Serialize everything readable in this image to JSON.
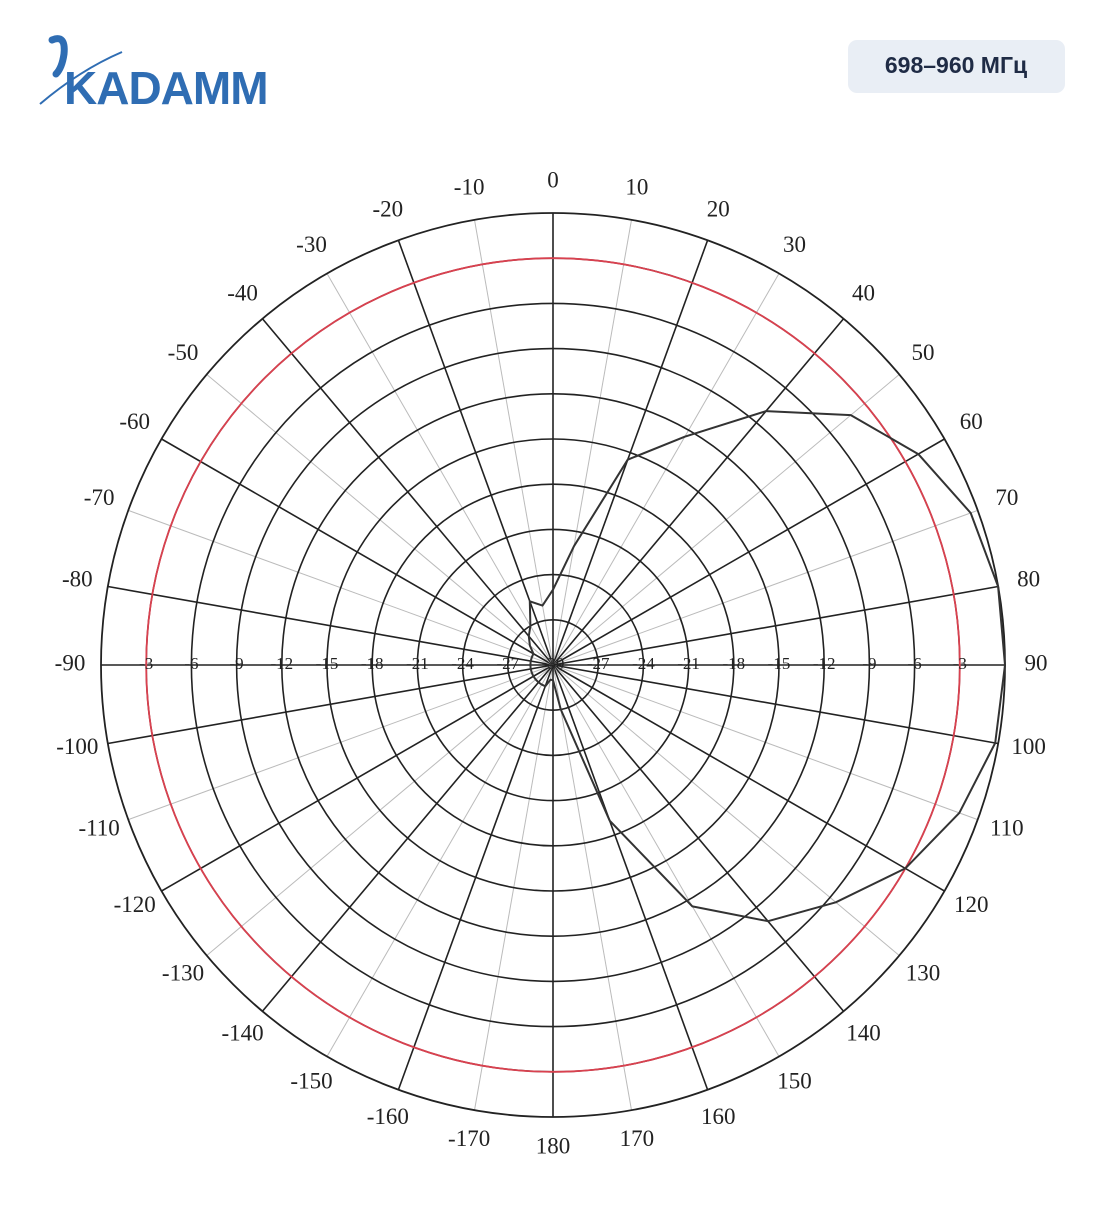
{
  "header": {
    "logo": "KADAMM",
    "badge": "698–960 МГц"
  },
  "chart_data": {
    "type": "polar",
    "x": [
      -170,
      -160,
      -150,
      -140,
      -130,
      -120,
      -110,
      -100,
      -90,
      -80,
      -70,
      -60,
      -50,
      -40,
      -30,
      -20,
      -10,
      0,
      10,
      20,
      30,
      40,
      50,
      60,
      70,
      80,
      90,
      100,
      110,
      120,
      130,
      140,
      150,
      160,
      170,
      180
    ],
    "values": [
      -29,
      -28.5,
      -28.5,
      -28.5,
      -28.5,
      -28.5,
      -28.5,
      -28.5,
      -28.5,
      -28.5,
      -28.5,
      -28.5,
      -28,
      -27.5,
      -27,
      -25.5,
      -26,
      -25,
      -22,
      -15.5,
      -12.5,
      -8,
      -4.2,
      -2,
      -0.5,
      0,
      0,
      -0.2,
      -1.3,
      -3,
      -5.5,
      -7.8,
      -11.5,
      -19,
      -27,
      -29
    ],
    "color": "#333333",
    "xlim": [
      -180,
      180
    ],
    "xticks": [
      -170,
      -160,
      -150,
      -140,
      -130,
      -120,
      -110,
      -100,
      -90,
      -80,
      -70,
      -60,
      -50,
      -40,
      -30,
      -20,
      -10,
      0,
      10,
      20,
      30,
      40,
      50,
      60,
      70,
      80,
      90,
      100,
      110,
      120,
      130,
      140,
      150,
      160,
      170,
      180
    ],
    "ylim": [
      -30,
      0
    ],
    "yticks": [
      -30,
      -27,
      -24,
      -21,
      -18,
      -15,
      -12,
      -9,
      -6,
      -3
    ],
    "reference_ring": {
      "value": -3,
      "color": "#d9414f"
    },
    "grid": true
  }
}
